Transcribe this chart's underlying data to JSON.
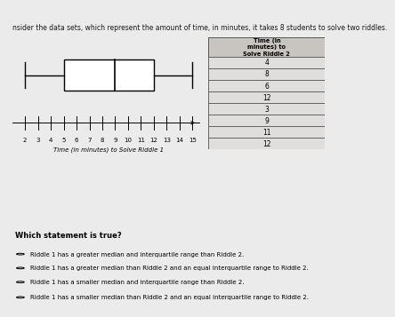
{
  "title": "nsider the data sets, which represent the amount of time, in minutes, it takes 8 students to solve two riddles.",
  "boxplot": {
    "whisker_low": 2,
    "q1": 5,
    "median": 9,
    "q3": 12,
    "whisker_high": 15,
    "xlabel": "Time (in minutes) to Solve Riddle 1",
    "xlim": [
      1,
      16
    ],
    "xticks": [
      2,
      3,
      4,
      5,
      6,
      7,
      8,
      9,
      10,
      11,
      12,
      13,
      14,
      15
    ]
  },
  "table": {
    "header": "Time (in\nminutes) to\nSolve Riddle 2",
    "values": [
      4,
      8,
      6,
      12,
      3,
      9,
      11,
      12
    ]
  },
  "question": "Which statement is true?",
  "choices": [
    "Riddle 1 has a greater median and interquartile range than Riddle 2.",
    "Riddle 1 has a greater median than Riddle 2 and an equal interquartile range to Riddle 2.",
    "Riddle 1 has a smaller median and interquartile range than Riddle 2.",
    "Riddle 1 has a smaller median than Riddle 2 and an equal interquartile range to Riddle 2."
  ],
  "bg_color": "#ebebeb",
  "table_bg": "#e0dedd",
  "table_header_bg": "#c8c5c0",
  "box_color": "#ffffff",
  "box_edge_color": "#000000",
  "title_color": "#1a1a1a",
  "top_bar_color": "#1a3a6b"
}
